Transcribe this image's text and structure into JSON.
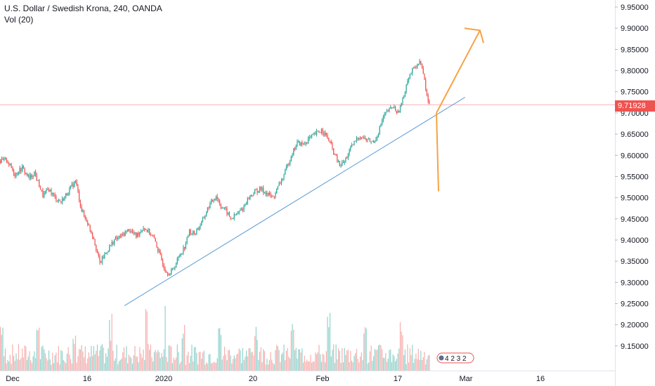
{
  "header": {
    "title": "U.S. Dollar / Swedish Krona, 240, OANDA",
    "volume_label": "Vol (20)"
  },
  "price_tag": "9.71928",
  "events_badge": "4 2 3 2",
  "colors": {
    "up": "#26a69a",
    "down": "#ef5350",
    "up_vol": "#80cbc4",
    "down_vol": "#f7a1a0",
    "trendline": "#5b9bd5",
    "arrows": "#f7a245",
    "price_line": "#ef5350"
  },
  "chart_data": {
    "type": "candlestick",
    "title": "U.S. Dollar / Swedish Krona, 240, OANDA",
    "y_axis": {
      "ticks": [
        "9.95000",
        "9.90000",
        "9.85000",
        "9.80000",
        "9.75000",
        "9.70000",
        "9.65000",
        "9.60000",
        "9.55000",
        "9.50000",
        "9.45000",
        "9.40000",
        "9.35000",
        "9.30000",
        "9.25000",
        "9.20000",
        "9.15000"
      ],
      "range": [
        9.13,
        9.955
      ],
      "side": "right"
    },
    "x_axis": {
      "ticks": [
        "Dec",
        "16",
        "2020",
        "20",
        "Feb",
        "17",
        "Mar",
        "16"
      ]
    },
    "last_price": 9.71928,
    "path_points": [
      {
        "t": 0,
        "p": 9.585
      },
      {
        "t": 5,
        "p": 9.59
      },
      {
        "t": 12,
        "p": 9.555
      },
      {
        "t": 18,
        "p": 9.57
      },
      {
        "t": 24,
        "p": 9.545
      },
      {
        "t": 28,
        "p": 9.56
      },
      {
        "t": 35,
        "p": 9.505
      },
      {
        "t": 40,
        "p": 9.52
      },
      {
        "t": 45,
        "p": 9.5
      },
      {
        "t": 50,
        "p": 9.49
      },
      {
        "t": 55,
        "p": 9.51
      },
      {
        "t": 62,
        "p": 9.54
      },
      {
        "t": 67,
        "p": 9.47
      },
      {
        "t": 72,
        "p": 9.44
      },
      {
        "t": 77,
        "p": 9.405
      },
      {
        "t": 82,
        "p": 9.345
      },
      {
        "t": 88,
        "p": 9.375
      },
      {
        "t": 94,
        "p": 9.4
      },
      {
        "t": 100,
        "p": 9.41
      },
      {
        "t": 106,
        "p": 9.425
      },
      {
        "t": 112,
        "p": 9.41
      },
      {
        "t": 118,
        "p": 9.43
      },
      {
        "t": 124,
        "p": 9.415
      },
      {
        "t": 128,
        "p": 9.395
      },
      {
        "t": 132,
        "p": 9.36
      },
      {
        "t": 136,
        "p": 9.33
      },
      {
        "t": 140,
        "p": 9.32
      },
      {
        "t": 144,
        "p": 9.34
      },
      {
        "t": 148,
        "p": 9.365
      },
      {
        "t": 152,
        "p": 9.385
      },
      {
        "t": 156,
        "p": 9.42
      },
      {
        "t": 160,
        "p": 9.415
      },
      {
        "t": 166,
        "p": 9.44
      },
      {
        "t": 172,
        "p": 9.48
      },
      {
        "t": 178,
        "p": 9.505
      },
      {
        "t": 182,
        "p": 9.48
      },
      {
        "t": 186,
        "p": 9.47
      },
      {
        "t": 190,
        "p": 9.45
      },
      {
        "t": 195,
        "p": 9.46
      },
      {
        "t": 200,
        "p": 9.475
      },
      {
        "t": 205,
        "p": 9.5
      },
      {
        "t": 210,
        "p": 9.515
      },
      {
        "t": 215,
        "p": 9.52
      },
      {
        "t": 220,
        "p": 9.51
      },
      {
        "t": 225,
        "p": 9.5
      },
      {
        "t": 230,
        "p": 9.53
      },
      {
        "t": 235,
        "p": 9.56
      },
      {
        "t": 240,
        "p": 9.6
      },
      {
        "t": 245,
        "p": 9.63
      },
      {
        "t": 250,
        "p": 9.625
      },
      {
        "t": 255,
        "p": 9.64
      },
      {
        "t": 260,
        "p": 9.65
      },
      {
        "t": 265,
        "p": 9.66
      },
      {
        "t": 268,
        "p": 9.65
      },
      {
        "t": 272,
        "p": 9.63
      },
      {
        "t": 276,
        "p": 9.6
      },
      {
        "t": 280,
        "p": 9.575
      },
      {
        "t": 284,
        "p": 9.585
      },
      {
        "t": 288,
        "p": 9.61
      },
      {
        "t": 292,
        "p": 9.63
      },
      {
        "t": 296,
        "p": 9.645
      },
      {
        "t": 300,
        "p": 9.64
      },
      {
        "t": 304,
        "p": 9.635
      },
      {
        "t": 308,
        "p": 9.63
      },
      {
        "t": 312,
        "p": 9.655
      },
      {
        "t": 316,
        "p": 9.69
      },
      {
        "t": 320,
        "p": 9.705
      },
      {
        "t": 324,
        "p": 9.715
      },
      {
        "t": 328,
        "p": 9.7
      },
      {
        "t": 332,
        "p": 9.73
      },
      {
        "t": 336,
        "p": 9.78
      },
      {
        "t": 340,
        "p": 9.8
      },
      {
        "t": 344,
        "p": 9.815
      },
      {
        "t": 347,
        "p": 9.82
      },
      {
        "t": 350,
        "p": 9.775
      },
      {
        "t": 352,
        "p": 9.74
      },
      {
        "t": 354,
        "p": 9.719
      }
    ],
    "trendline": [
      [
        0.19,
        9.245
      ],
      [
        0.71,
        9.737
      ]
    ],
    "annotations": [
      {
        "type": "arrow",
        "direction": "up",
        "from": 9.7,
        "to": 9.895
      },
      {
        "type": "arrow",
        "direction": "down",
        "from": 9.7,
        "to": 9.515
      }
    ]
  }
}
